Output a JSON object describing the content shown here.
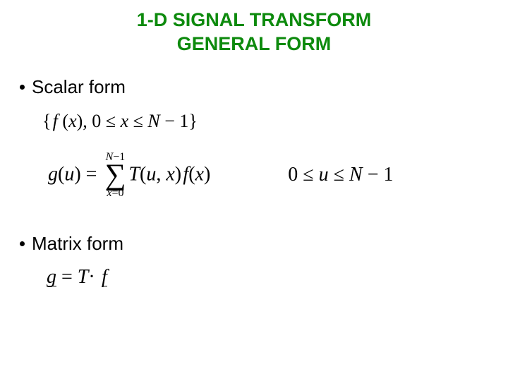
{
  "title": {
    "line1": "1-D SIGNAL TRANSFORM",
    "line2": "GENERAL FORM",
    "color": "#0d8a0d",
    "fontsize": 27
  },
  "bullets": {
    "scalar": "Scalar form",
    "matrix": "Matrix form",
    "fontsize": 26
  },
  "equations": {
    "fontsize_main": 28,
    "fontsize_set": 26,
    "sigma_upper_fontsize": 16,
    "sigma_lower_fontsize": 16,
    "sigma_symbol_fontsize": 42,
    "set_open": "{",
    "set_f": "f",
    "set_x": "x",
    "set_comma": ", 0 ≤ ",
    "set_leq": " ≤ ",
    "set_N": "N",
    "set_minus1": " − 1}",
    "g": "g",
    "u": "u",
    "eq": " = ",
    "sum_upper_N": "N",
    "sum_upper_minus1": "−1",
    "sum_lower_x": "x",
    "sum_lower_eq0": "=0",
    "T": "T",
    "open": "(",
    "close": ")",
    "comma": ", ",
    "range_0": "0 ≤ ",
    "range_leq": " ≤ ",
    "range_minus1": " − 1",
    "matrix_g": "g",
    "matrix_eq": " = ",
    "matrix_T": "T",
    "matrix_dot": "· ",
    "matrix_f": "f"
  },
  "colors": {
    "text": "#000000",
    "background": "#ffffff"
  }
}
